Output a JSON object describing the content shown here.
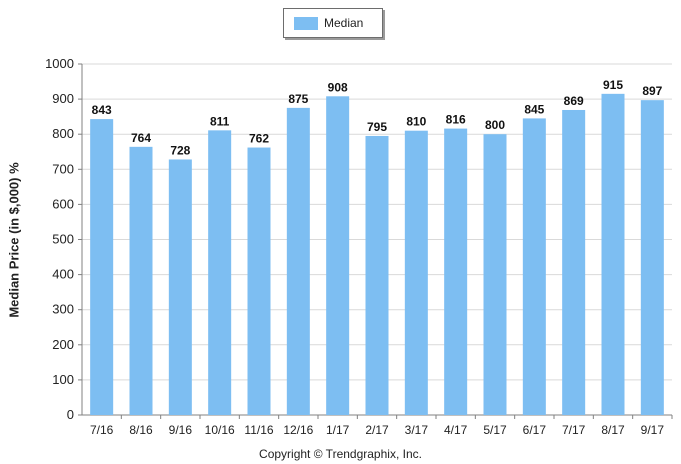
{
  "legend": {
    "label": "Median"
  },
  "copyright": "Copyright © Trendgraphix, Inc.",
  "colors": {
    "bar": "#7dbef2",
    "grid": "#d9d9d9",
    "axis": "#808080"
  },
  "chart_data": {
    "type": "bar",
    "categories": [
      "7/16",
      "8/16",
      "9/16",
      "10/16",
      "11/16",
      "12/16",
      "1/17",
      "2/17",
      "3/17",
      "4/17",
      "5/17",
      "6/17",
      "7/17",
      "8/17",
      "9/17"
    ],
    "series": [
      {
        "name": "Median",
        "values": [
          843,
          764,
          728,
          811,
          762,
          875,
          908,
          795,
          810,
          816,
          800,
          845,
          869,
          915,
          897
        ]
      }
    ],
    "ylabel": "Median Price (in $,000) %",
    "ylim": [
      0,
      1000
    ],
    "yticks": [
      0,
      100,
      200,
      300,
      400,
      500,
      600,
      700,
      800,
      900,
      1000
    ],
    "grid": true,
    "legend_position": "top-center"
  }
}
